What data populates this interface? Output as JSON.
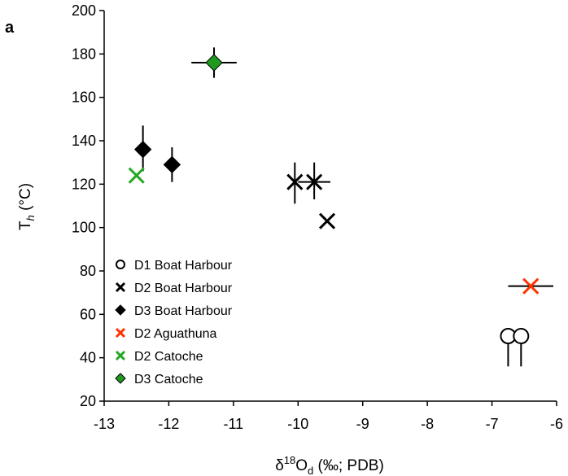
{
  "chart_data": {
    "type": "scatter",
    "panel_label": "a",
    "xlabel": {
      "main": "δ",
      "sup": "18",
      "mid": "O",
      "sub": "d",
      "rest": " (‰; PDB)"
    },
    "ylabel": {
      "main": "T",
      "sub": "h",
      "rest": " (°C)"
    },
    "xlim": [
      -13,
      -6
    ],
    "ylim": [
      20,
      200
    ],
    "xticks": [
      -13,
      -12,
      -11,
      -10,
      -9,
      -8,
      -7,
      -6
    ],
    "yticks": [
      20,
      40,
      60,
      80,
      100,
      120,
      140,
      160,
      180,
      200
    ],
    "grid": false,
    "legend_position": "bottom-left",
    "series": [
      {
        "name": "D1 Boat Harbour",
        "marker": "circle-open",
        "color": "#000000",
        "points": [
          {
            "x": -6.75,
            "y": 50,
            "yerr_minus": 14,
            "yerr_plus": 0,
            "xerr": 0
          },
          {
            "x": -6.55,
            "y": 50,
            "yerr_minus": 14,
            "yerr_plus": 0,
            "xerr": 0
          }
        ]
      },
      {
        "name": "D2 Boat Harbour",
        "marker": "x",
        "color": "#000000",
        "points": [
          {
            "x": -10.05,
            "y": 121,
            "yerr_minus": 10,
            "yerr_plus": 9,
            "xerr": 0
          },
          {
            "x": -9.75,
            "y": 121,
            "yerr_minus": 8,
            "yerr_plus": 9,
            "xerr": 0.25
          },
          {
            "x": -9.55,
            "y": 103,
            "yerr_minus": 0,
            "yerr_plus": 0,
            "xerr": 0
          }
        ]
      },
      {
        "name": "D3 Boat Harbour",
        "marker": "diamond",
        "color": "#000000",
        "points": [
          {
            "x": -12.4,
            "y": 136,
            "yerr_minus": 10,
            "yerr_plus": 11,
            "xerr": 0
          },
          {
            "x": -11.95,
            "y": 129,
            "yerr_minus": 8,
            "yerr_plus": 8,
            "xerr": 0
          }
        ]
      },
      {
        "name": "D2 Aguathuna",
        "marker": "x",
        "color": "#ff3300",
        "points": [
          {
            "x": -6.4,
            "y": 73,
            "yerr_minus": 0,
            "yerr_plus": 0,
            "xerr": 0.35
          }
        ]
      },
      {
        "name": "D2 Catoche",
        "marker": "x",
        "color": "#22a822",
        "points": [
          {
            "x": -12.5,
            "y": 124,
            "yerr_minus": 0,
            "yerr_plus": 0,
            "xerr": 0
          }
        ]
      },
      {
        "name": "D3 Catoche",
        "marker": "diamond",
        "color": "#1f9a1f",
        "points": [
          {
            "x": -11.3,
            "y": 176,
            "yerr_minus": 7,
            "yerr_plus": 7,
            "xerr": 0.35
          }
        ]
      }
    ]
  }
}
